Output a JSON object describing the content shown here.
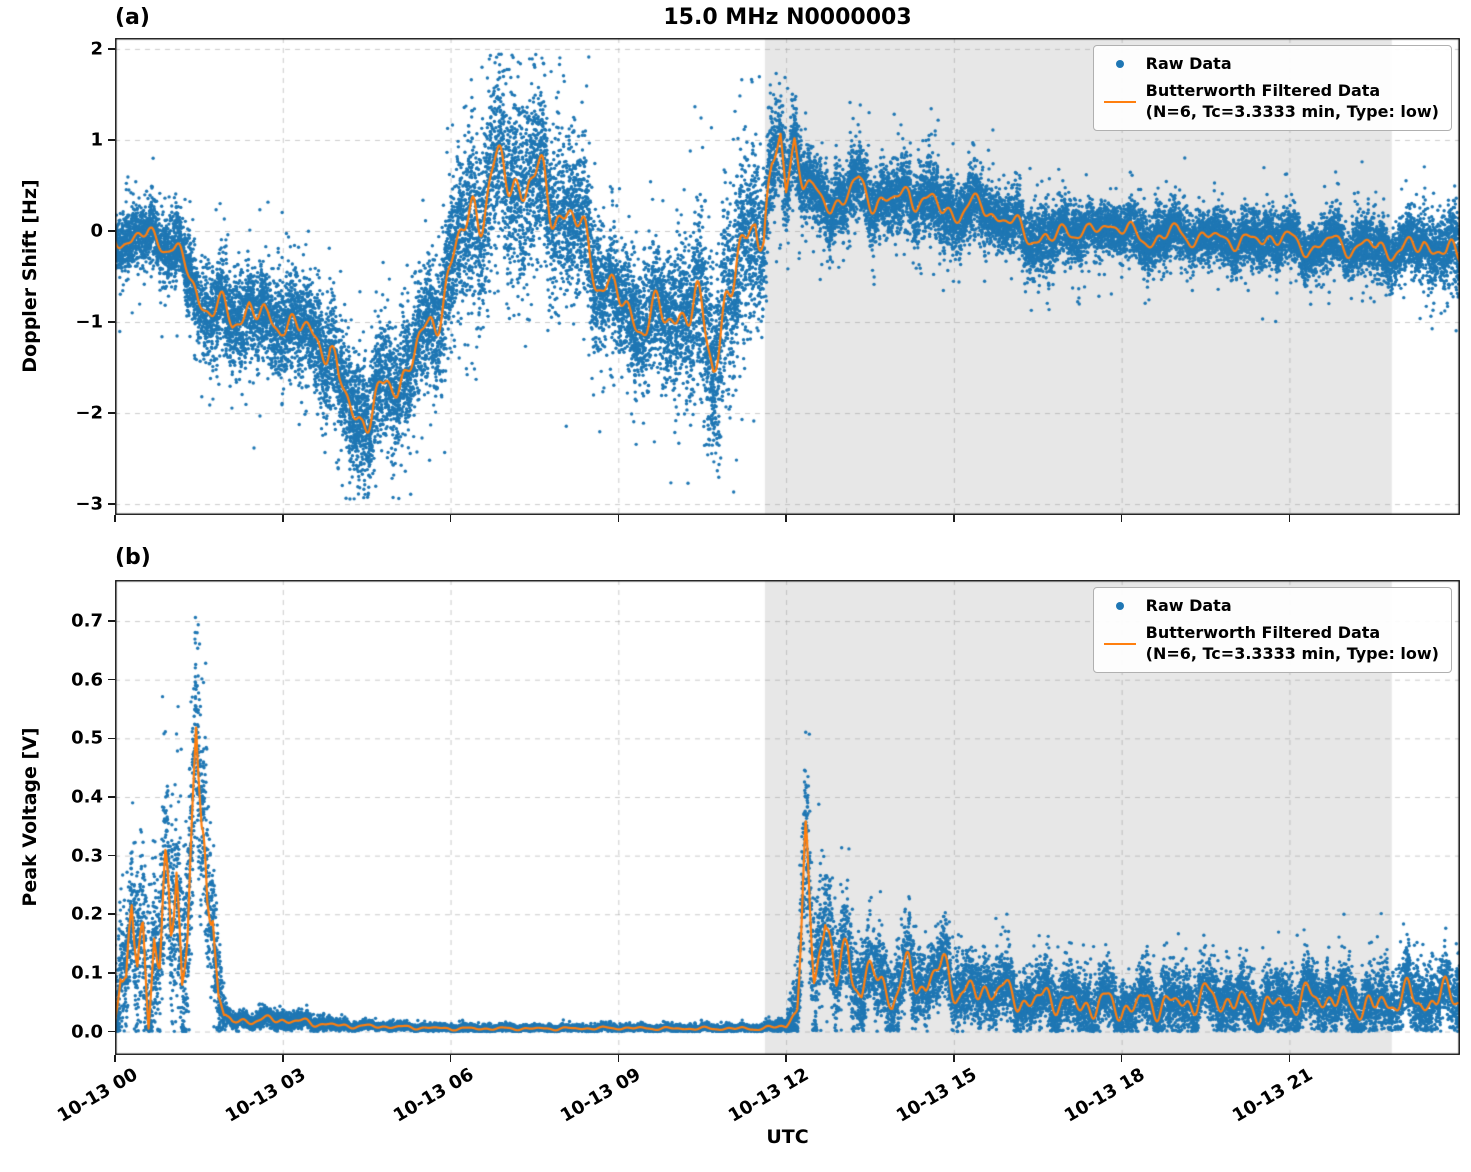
{
  "figure": {
    "xlabel": "UTC",
    "background": "#ffffff",
    "colors": {
      "raw": "#1f77b4",
      "filtered": "#ff7f0e",
      "shading": "#e7e7e7",
      "grid": "rgba(160,160,160,0.55)",
      "spine": "#1a1a1a"
    }
  },
  "chart_data": [
    {
      "id": "a",
      "type": "scatter",
      "panel_label": "(a)",
      "title": "15.0 MHz N0000003",
      "ylabel": "Doppler Shift [Hz]",
      "x_unit": "hours since 10-13 00 UTC",
      "xlim": [
        0,
        24.05
      ],
      "ylim": [
        -3.12,
        2.12
      ],
      "grid": true,
      "yticks": {
        "values": [
          2,
          1,
          0,
          -1,
          -2,
          -3
        ],
        "labels": [
          "2",
          "1",
          "0",
          "−1",
          "−2",
          "−3"
        ]
      },
      "xticks": {
        "positions": [
          0,
          3,
          6,
          9,
          12,
          15,
          18,
          21
        ],
        "labels": [
          "10-13 00",
          "10-13 03",
          "10-13 06",
          "10-13 09",
          "10-13 12",
          "10-13 15",
          "10-13 18",
          "10-13 21"
        ]
      },
      "shaded_region": {
        "x0": 11.62,
        "x1": 22.83,
        "color": "#e7e7e7"
      },
      "legend": {
        "position": "upper right",
        "entries": [
          {
            "marker": "dot",
            "color": "#1f77b4",
            "label": "Raw Data"
          },
          {
            "marker": "line",
            "color": "#ff7f0e",
            "label": "Butterworth Filtered Data",
            "sublabel": "(N=6, Tc=3.3333 min, Type: low)"
          }
        ]
      },
      "spread_keypoints": [
        [
          0,
          0.3
        ],
        [
          0.5,
          0.35
        ],
        [
          1,
          0.4
        ],
        [
          1.5,
          0.5
        ],
        [
          2,
          0.55
        ],
        [
          2.5,
          0.6
        ],
        [
          3,
          0.55
        ],
        [
          3.5,
          0.6
        ],
        [
          4,
          0.65
        ],
        [
          4.5,
          0.75
        ],
        [
          5,
          0.7
        ],
        [
          5.5,
          0.75
        ],
        [
          6,
          0.85
        ],
        [
          6.5,
          1.15
        ],
        [
          7,
          1.1
        ],
        [
          7.5,
          1.0
        ],
        [
          8,
          1.0
        ],
        [
          8.5,
          0.8
        ],
        [
          9,
          0.65
        ],
        [
          9.5,
          0.7
        ],
        [
          10,
          0.8
        ],
        [
          10.5,
          1.05
        ],
        [
          11,
          1.2
        ],
        [
          11.5,
          0.9
        ],
        [
          12,
          0.55
        ],
        [
          12.5,
          0.4
        ],
        [
          13,
          0.4
        ],
        [
          13.5,
          0.45
        ],
        [
          14,
          0.4
        ],
        [
          14.5,
          0.45
        ],
        [
          15,
          0.4
        ],
        [
          15.5,
          0.35
        ],
        [
          16,
          0.35
        ],
        [
          16.5,
          0.4
        ],
        [
          17,
          0.35
        ],
        [
          17.5,
          0.3
        ],
        [
          18,
          0.3
        ],
        [
          18.5,
          0.35
        ],
        [
          19,
          0.3
        ],
        [
          19.5,
          0.3
        ],
        [
          20,
          0.3
        ],
        [
          20.5,
          0.35
        ],
        [
          21,
          0.3
        ],
        [
          21.5,
          0.3
        ],
        [
          22,
          0.3
        ],
        [
          22.5,
          0.35
        ],
        [
          23,
          0.35
        ],
        [
          23.5,
          0.4
        ],
        [
          24.05,
          0.45
        ]
      ],
      "series": [
        {
          "name": "Raw Data",
          "type": "scatter",
          "color": "#1f77b4",
          "render": {
            "n_points": 26000,
            "seed": 42,
            "sigma_factor": 0.45,
            "outlier_rate": 0.05,
            "outlier_mult": 1.7,
            "outlier_positive": false,
            "clamp": [
              -2.95,
              1.95
            ]
          }
        },
        {
          "name": "Butterworth Filtered Data (N=6, Tc=3.3333 min, Type: low)",
          "type": "line",
          "color": "#ff7f0e",
          "width": 2.2,
          "wiggle": {
            "scale": 0.4,
            "freqs": [
              34,
              59,
              96
            ],
            "amps": [
              0.55,
              0.35,
              0.22
            ],
            "seed": 11
          },
          "keypoints": [
            [
              0,
              -0.08
            ],
            [
              0.3,
              -0.1
            ],
            [
              0.6,
              -0.05
            ],
            [
              1,
              -0.15
            ],
            [
              1.3,
              -0.45
            ],
            [
              1.5,
              -0.75
            ],
            [
              1.8,
              -0.85
            ],
            [
              2.1,
              -1.0
            ],
            [
              2.4,
              -0.8
            ],
            [
              2.7,
              -1.05
            ],
            [
              3,
              -0.95
            ],
            [
              3.3,
              -1.1
            ],
            [
              3.6,
              -1.15
            ],
            [
              3.85,
              -1.25
            ],
            [
              4,
              -1.75
            ],
            [
              4.2,
              -1.9
            ],
            [
              4.4,
              -2.05
            ],
            [
              4.6,
              -1.95
            ],
            [
              4.8,
              -1.85
            ],
            [
              5,
              -1.6
            ],
            [
              5.2,
              -1.55
            ],
            [
              5.4,
              -1.3
            ],
            [
              5.6,
              -1.15
            ],
            [
              5.8,
              -0.75
            ],
            [
              6,
              -0.45
            ],
            [
              6.2,
              -0.1
            ],
            [
              6.4,
              0.25
            ],
            [
              6.6,
              0.45
            ],
            [
              6.8,
              0.55
            ],
            [
              7,
              0.6
            ],
            [
              7.2,
              0.55
            ],
            [
              7.4,
              0.6
            ],
            [
              7.6,
              0.45
            ],
            [
              7.8,
              0.35
            ],
            [
              8,
              0.25
            ],
            [
              8.3,
              0.0
            ],
            [
              8.6,
              -0.4
            ],
            [
              8.9,
              -0.7
            ],
            [
              9.2,
              -0.9
            ],
            [
              9.5,
              -1.0
            ],
            [
              9.8,
              -0.95
            ],
            [
              10.1,
              -0.85
            ],
            [
              10.4,
              -0.95
            ],
            [
              10.7,
              -1.25
            ],
            [
              10.9,
              -0.9
            ],
            [
              11.1,
              -0.55
            ],
            [
              11.3,
              -0.1
            ],
            [
              11.45,
              0.35
            ],
            [
              11.6,
              -0.1
            ],
            [
              11.75,
              0.6
            ],
            [
              11.9,
              1.0
            ],
            [
              12,
              0.45
            ],
            [
              12.15,
              1.05
            ],
            [
              12.3,
              0.6
            ],
            [
              12.45,
              0.4
            ],
            [
              12.6,
              0.35
            ],
            [
              12.8,
              0.3
            ],
            [
              13,
              0.35
            ],
            [
              13.3,
              0.5
            ],
            [
              13.6,
              0.35
            ],
            [
              13.9,
              0.3
            ],
            [
              14.2,
              0.45
            ],
            [
              14.5,
              0.3
            ],
            [
              14.8,
              0.25
            ],
            [
              15.1,
              0.2
            ],
            [
              15.5,
              0.3
            ],
            [
              15.9,
              0.1
            ],
            [
              16.3,
              0.0
            ],
            [
              16.7,
              -0.15
            ],
            [
              17,
              0.05
            ],
            [
              17.4,
              -0.05
            ],
            [
              17.8,
              0.1
            ],
            [
              18.2,
              -0.05
            ],
            [
              18.6,
              -0.1
            ],
            [
              19,
              0.0
            ],
            [
              19.4,
              -0.1
            ],
            [
              19.8,
              -0.05
            ],
            [
              20.2,
              -0.15
            ],
            [
              20.6,
              -0.05
            ],
            [
              21,
              -0.1
            ],
            [
              21.4,
              -0.2
            ],
            [
              21.8,
              -0.1
            ],
            [
              22.2,
              -0.2
            ],
            [
              22.6,
              -0.15
            ],
            [
              23,
              -0.25
            ],
            [
              23.4,
              -0.1
            ],
            [
              23.8,
              -0.3
            ],
            [
              24.05,
              -0.2
            ]
          ]
        }
      ]
    },
    {
      "id": "b",
      "type": "scatter",
      "panel_label": "(b)",
      "ylabel": "Peak Voltage [V]",
      "xlabel": "UTC",
      "x_unit": "hours since 10-13 00 UTC",
      "xlim": [
        0,
        24.05
      ],
      "ylim": [
        -0.04,
        0.77
      ],
      "line_min": 0.002,
      "grid": true,
      "yticks": {
        "values": [
          0.7,
          0.6,
          0.5,
          0.4,
          0.3,
          0.2,
          0.1,
          0.0
        ],
        "labels": [
          "0.7",
          "0.6",
          "0.5",
          "0.4",
          "0.3",
          "0.2",
          "0.1",
          "0.0"
        ]
      },
      "xticks": {
        "positions": [
          0,
          3,
          6,
          9,
          12,
          15,
          18,
          21
        ],
        "labels": [
          "10-13 00",
          "10-13 03",
          "10-13 06",
          "10-13 09",
          "10-13 12",
          "10-13 15",
          "10-13 18",
          "10-13 21"
        ]
      },
      "shaded_region": {
        "x0": 11.62,
        "x1": 22.83,
        "color": "#e7e7e7"
      },
      "legend": {
        "position": "upper right",
        "entries": [
          {
            "marker": "dot",
            "color": "#1f77b4",
            "label": "Raw Data"
          },
          {
            "marker": "line",
            "color": "#ff7f0e",
            "label": "Butterworth Filtered Data",
            "sublabel": "(N=6, Tc=3.3333 min, Type: low)"
          }
        ]
      },
      "spread_keypoints": [
        [
          0,
          0.1
        ],
        [
          0.5,
          0.13
        ],
        [
          1,
          0.16
        ],
        [
          1.5,
          0.18
        ],
        [
          1.8,
          0.1
        ],
        [
          2,
          0.012
        ],
        [
          3,
          0.015
        ],
        [
          4,
          0.008
        ],
        [
          5,
          0.006
        ],
        [
          7,
          0.005
        ],
        [
          10,
          0.005
        ],
        [
          11.6,
          0.006
        ],
        [
          12,
          0.012
        ],
        [
          12.2,
          0.06
        ],
        [
          12.35,
          0.16
        ],
        [
          12.6,
          0.11
        ],
        [
          13,
          0.08
        ],
        [
          13.5,
          0.07
        ],
        [
          14,
          0.07
        ],
        [
          14.5,
          0.065
        ],
        [
          15,
          0.06
        ],
        [
          15.5,
          0.055
        ],
        [
          16,
          0.05
        ],
        [
          17,
          0.05
        ],
        [
          18,
          0.05
        ],
        [
          19,
          0.05
        ],
        [
          20,
          0.05
        ],
        [
          21,
          0.05
        ],
        [
          22,
          0.05
        ],
        [
          23,
          0.055
        ],
        [
          24.05,
          0.06
        ]
      ],
      "series": [
        {
          "name": "Raw Data",
          "type": "scatter",
          "color": "#1f77b4",
          "render": {
            "n_points": 22000,
            "seed": 43,
            "sigma_factor": 0.5,
            "outlier_rate": 0.05,
            "outlier_mult": 1.6,
            "outlier_positive": true,
            "clamp": [
              0.0,
              0.74
            ]
          }
        },
        {
          "name": "Butterworth Filtered Data (N=6, Tc=3.3333 min, Type: low)",
          "type": "line",
          "color": "#ff7f0e",
          "width": 2.2,
          "wiggle": {
            "scale": 0.55,
            "freqs": [
              40,
              67,
              105
            ],
            "amps": [
              0.55,
              0.35,
              0.25
            ],
            "seed": 5
          },
          "keypoints": [
            [
              0,
              0.05
            ],
            [
              0.1,
              0.12
            ],
            [
              0.2,
              0.06
            ],
            [
              0.3,
              0.2
            ],
            [
              0.4,
              0.1
            ],
            [
              0.5,
              0.16
            ],
            [
              0.6,
              0.05
            ],
            [
              0.7,
              0.2
            ],
            [
              0.8,
              0.12
            ],
            [
              0.9,
              0.22
            ],
            [
              1,
              0.15
            ],
            [
              1.1,
              0.3
            ],
            [
              1.2,
              0.1
            ],
            [
              1.3,
              0.2
            ],
            [
              1.45,
              0.53
            ],
            [
              1.55,
              0.28
            ],
            [
              1.65,
              0.18
            ],
            [
              1.75,
              0.24
            ],
            [
              1.85,
              0.08
            ],
            [
              1.95,
              0.03
            ],
            [
              2.1,
              0.015
            ],
            [
              2.5,
              0.02
            ],
            [
              3,
              0.02
            ],
            [
              3.5,
              0.015
            ],
            [
              4,
              0.01
            ],
            [
              5,
              0.008
            ],
            [
              6,
              0.005
            ],
            [
              7,
              0.005
            ],
            [
              8,
              0.005
            ],
            [
              9,
              0.006
            ],
            [
              10,
              0.005
            ],
            [
              11,
              0.005
            ],
            [
              11.6,
              0.005
            ],
            [
              12,
              0.01
            ],
            [
              12.2,
              0.05
            ],
            [
              12.35,
              0.26
            ],
            [
              12.5,
              0.12
            ],
            [
              12.7,
              0.2
            ],
            [
              12.9,
              0.08
            ],
            [
              13.1,
              0.14
            ],
            [
              13.35,
              0.07
            ],
            [
              13.6,
              0.1
            ],
            [
              13.9,
              0.06
            ],
            [
              14.2,
              0.1
            ],
            [
              14.5,
              0.08
            ],
            [
              14.8,
              0.11
            ],
            [
              15.1,
              0.07
            ],
            [
              15.4,
              0.06
            ],
            [
              15.7,
              0.08
            ],
            [
              16,
              0.06
            ],
            [
              16.4,
              0.05
            ],
            [
              16.8,
              0.06
            ],
            [
              17.2,
              0.04
            ],
            [
              17.6,
              0.05
            ],
            [
              18,
              0.04
            ],
            [
              18.5,
              0.05
            ],
            [
              19,
              0.045
            ],
            [
              19.5,
              0.06
            ],
            [
              20,
              0.05
            ],
            [
              20.5,
              0.04
            ],
            [
              21,
              0.05
            ],
            [
              21.5,
              0.06
            ],
            [
              22,
              0.05
            ],
            [
              22.5,
              0.04
            ],
            [
              23,
              0.06
            ],
            [
              23.5,
              0.05
            ],
            [
              24.05,
              0.07
            ]
          ]
        }
      ]
    }
  ]
}
